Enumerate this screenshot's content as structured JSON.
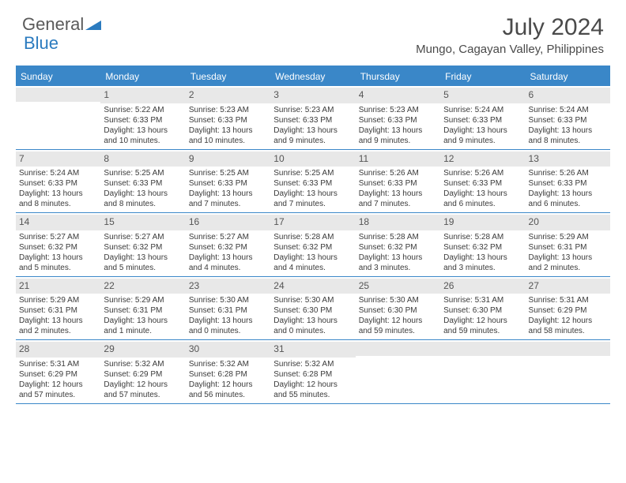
{
  "logo": {
    "text1": "General",
    "text2": "Blue"
  },
  "title": "July 2024",
  "location": "Mungo, Cagayan Valley, Philippines",
  "colors": {
    "header_bg": "#3a87c8",
    "header_text": "#ffffff",
    "daynum_bg": "#e8e8e8",
    "border": "#3a87c8",
    "text": "#3a3a3a",
    "logo_gray": "#5a5a5a",
    "logo_blue": "#2b7bbf"
  },
  "day_headers": [
    "Sunday",
    "Monday",
    "Tuesday",
    "Wednesday",
    "Thursday",
    "Friday",
    "Saturday"
  ],
  "weeks": [
    [
      {
        "num": "",
        "lines": []
      },
      {
        "num": "1",
        "lines": [
          "Sunrise: 5:22 AM",
          "Sunset: 6:33 PM",
          "Daylight: 13 hours and 10 minutes."
        ]
      },
      {
        "num": "2",
        "lines": [
          "Sunrise: 5:23 AM",
          "Sunset: 6:33 PM",
          "Daylight: 13 hours and 10 minutes."
        ]
      },
      {
        "num": "3",
        "lines": [
          "Sunrise: 5:23 AM",
          "Sunset: 6:33 PM",
          "Daylight: 13 hours and 9 minutes."
        ]
      },
      {
        "num": "4",
        "lines": [
          "Sunrise: 5:23 AM",
          "Sunset: 6:33 PM",
          "Daylight: 13 hours and 9 minutes."
        ]
      },
      {
        "num": "5",
        "lines": [
          "Sunrise: 5:24 AM",
          "Sunset: 6:33 PM",
          "Daylight: 13 hours and 9 minutes."
        ]
      },
      {
        "num": "6",
        "lines": [
          "Sunrise: 5:24 AM",
          "Sunset: 6:33 PM",
          "Daylight: 13 hours and 8 minutes."
        ]
      }
    ],
    [
      {
        "num": "7",
        "lines": [
          "Sunrise: 5:24 AM",
          "Sunset: 6:33 PM",
          "Daylight: 13 hours and 8 minutes."
        ]
      },
      {
        "num": "8",
        "lines": [
          "Sunrise: 5:25 AM",
          "Sunset: 6:33 PM",
          "Daylight: 13 hours and 8 minutes."
        ]
      },
      {
        "num": "9",
        "lines": [
          "Sunrise: 5:25 AM",
          "Sunset: 6:33 PM",
          "Daylight: 13 hours and 7 minutes."
        ]
      },
      {
        "num": "10",
        "lines": [
          "Sunrise: 5:25 AM",
          "Sunset: 6:33 PM",
          "Daylight: 13 hours and 7 minutes."
        ]
      },
      {
        "num": "11",
        "lines": [
          "Sunrise: 5:26 AM",
          "Sunset: 6:33 PM",
          "Daylight: 13 hours and 7 minutes."
        ]
      },
      {
        "num": "12",
        "lines": [
          "Sunrise: 5:26 AM",
          "Sunset: 6:33 PM",
          "Daylight: 13 hours and 6 minutes."
        ]
      },
      {
        "num": "13",
        "lines": [
          "Sunrise: 5:26 AM",
          "Sunset: 6:33 PM",
          "Daylight: 13 hours and 6 minutes."
        ]
      }
    ],
    [
      {
        "num": "14",
        "lines": [
          "Sunrise: 5:27 AM",
          "Sunset: 6:32 PM",
          "Daylight: 13 hours and 5 minutes."
        ]
      },
      {
        "num": "15",
        "lines": [
          "Sunrise: 5:27 AM",
          "Sunset: 6:32 PM",
          "Daylight: 13 hours and 5 minutes."
        ]
      },
      {
        "num": "16",
        "lines": [
          "Sunrise: 5:27 AM",
          "Sunset: 6:32 PM",
          "Daylight: 13 hours and 4 minutes."
        ]
      },
      {
        "num": "17",
        "lines": [
          "Sunrise: 5:28 AM",
          "Sunset: 6:32 PM",
          "Daylight: 13 hours and 4 minutes."
        ]
      },
      {
        "num": "18",
        "lines": [
          "Sunrise: 5:28 AM",
          "Sunset: 6:32 PM",
          "Daylight: 13 hours and 3 minutes."
        ]
      },
      {
        "num": "19",
        "lines": [
          "Sunrise: 5:28 AM",
          "Sunset: 6:32 PM",
          "Daylight: 13 hours and 3 minutes."
        ]
      },
      {
        "num": "20",
        "lines": [
          "Sunrise: 5:29 AM",
          "Sunset: 6:31 PM",
          "Daylight: 13 hours and 2 minutes."
        ]
      }
    ],
    [
      {
        "num": "21",
        "lines": [
          "Sunrise: 5:29 AM",
          "Sunset: 6:31 PM",
          "Daylight: 13 hours and 2 minutes."
        ]
      },
      {
        "num": "22",
        "lines": [
          "Sunrise: 5:29 AM",
          "Sunset: 6:31 PM",
          "Daylight: 13 hours and 1 minute."
        ]
      },
      {
        "num": "23",
        "lines": [
          "Sunrise: 5:30 AM",
          "Sunset: 6:31 PM",
          "Daylight: 13 hours and 0 minutes."
        ]
      },
      {
        "num": "24",
        "lines": [
          "Sunrise: 5:30 AM",
          "Sunset: 6:30 PM",
          "Daylight: 13 hours and 0 minutes."
        ]
      },
      {
        "num": "25",
        "lines": [
          "Sunrise: 5:30 AM",
          "Sunset: 6:30 PM",
          "Daylight: 12 hours and 59 minutes."
        ]
      },
      {
        "num": "26",
        "lines": [
          "Sunrise: 5:31 AM",
          "Sunset: 6:30 PM",
          "Daylight: 12 hours and 59 minutes."
        ]
      },
      {
        "num": "27",
        "lines": [
          "Sunrise: 5:31 AM",
          "Sunset: 6:29 PM",
          "Daylight: 12 hours and 58 minutes."
        ]
      }
    ],
    [
      {
        "num": "28",
        "lines": [
          "Sunrise: 5:31 AM",
          "Sunset: 6:29 PM",
          "Daylight: 12 hours and 57 minutes."
        ]
      },
      {
        "num": "29",
        "lines": [
          "Sunrise: 5:32 AM",
          "Sunset: 6:29 PM",
          "Daylight: 12 hours and 57 minutes."
        ]
      },
      {
        "num": "30",
        "lines": [
          "Sunrise: 5:32 AM",
          "Sunset: 6:28 PM",
          "Daylight: 12 hours and 56 minutes."
        ]
      },
      {
        "num": "31",
        "lines": [
          "Sunrise: 5:32 AM",
          "Sunset: 6:28 PM",
          "Daylight: 12 hours and 55 minutes."
        ]
      },
      {
        "num": "",
        "lines": []
      },
      {
        "num": "",
        "lines": []
      },
      {
        "num": "",
        "lines": []
      }
    ]
  ]
}
